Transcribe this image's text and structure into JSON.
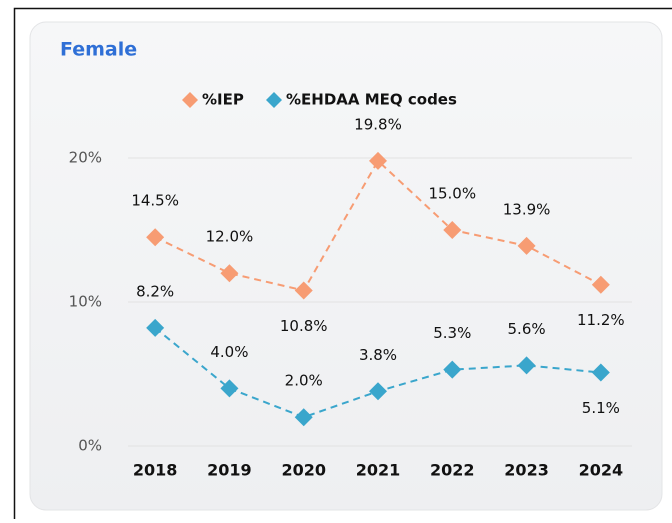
{
  "chart_data": {
    "type": "line",
    "title": "Female",
    "categories": [
      "2018",
      "2019",
      "2020",
      "2021",
      "2022",
      "2023",
      "2024"
    ],
    "series": [
      {
        "name": "%IEP",
        "color": "#f79c73",
        "values": [
          14.5,
          12.0,
          10.8,
          19.8,
          15.0,
          13.9,
          11.2
        ],
        "value_labels": [
          "14.5%",
          "12.0%",
          "10.8%",
          "19.8%",
          "15.0%",
          "13.9%",
          "11.2%"
        ]
      },
      {
        "name": "%EHDAA MEQ codes",
        "color": "#3aa6cc",
        "values": [
          8.2,
          4.0,
          2.0,
          3.8,
          5.3,
          5.6,
          5.1
        ],
        "value_labels": [
          "8.2%",
          "4.0%",
          "2.0%",
          "3.8%",
          "5.3%",
          "5.6%",
          "5.1%"
        ]
      }
    ],
    "ylim": [
      0,
      20
    ],
    "yticks": [
      {
        "value": 0,
        "label": "0%"
      },
      {
        "value": 10,
        "label": "10%"
      },
      {
        "value": 20,
        "label": "20%"
      }
    ],
    "grid": true,
    "legend": "top",
    "line_style": "dashed"
  }
}
